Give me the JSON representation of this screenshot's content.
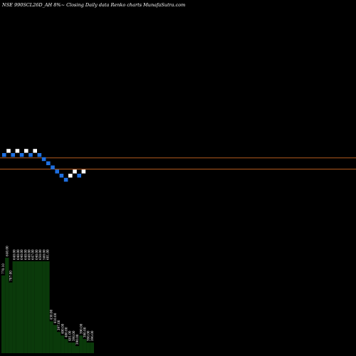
{
  "chart_data": {
    "type": "renko",
    "title": "NSE 990SCL26D_AH 8%~   Closing Daily data  Renko  charts MunafaSutra.com",
    "colors": {
      "background": "#000000",
      "up_brick": "#ffffff",
      "down_brick": "#1e6fe0",
      "reference_line": "#b35a1f",
      "volume": "#0a3a0a",
      "text": "#ffffff"
    },
    "bricks": [
      {
        "i": 0,
        "level": 0,
        "dir": "down"
      },
      {
        "i": 1,
        "level": 1,
        "dir": "up"
      },
      {
        "i": 2,
        "level": 0,
        "dir": "down"
      },
      {
        "i": 3,
        "level": 1,
        "dir": "up"
      },
      {
        "i": 4,
        "level": 0,
        "dir": "down"
      },
      {
        "i": 5,
        "level": 1,
        "dir": "up"
      },
      {
        "i": 6,
        "level": 0,
        "dir": "down"
      },
      {
        "i": 7,
        "level": 1,
        "dir": "up"
      },
      {
        "i": 8,
        "level": 0,
        "dir": "down"
      },
      {
        "i": 9,
        "level": -1,
        "dir": "down"
      },
      {
        "i": 10,
        "level": -2,
        "dir": "down"
      },
      {
        "i": 11,
        "level": -3,
        "dir": "down"
      },
      {
        "i": 12,
        "level": -4,
        "dir": "down"
      },
      {
        "i": 13,
        "level": -5,
        "dir": "down"
      },
      {
        "i": 14,
        "level": -6,
        "dir": "down"
      },
      {
        "i": 15,
        "level": -5,
        "dir": "up"
      },
      {
        "i": 16,
        "level": -4,
        "dir": "up"
      },
      {
        "i": 17,
        "level": -5,
        "dir": "down"
      },
      {
        "i": 18,
        "level": -4,
        "dir": "up"
      }
    ],
    "reference_lines": [
      {
        "name": "upper",
        "value": -0.5
      },
      {
        "name": "lower",
        "value": -3.2
      }
    ],
    "volume_labels": [
      "770.10",
      "640.00",
      "707.00",
      "640.00",
      "640.00",
      "640.00",
      "640.00",
      "640.00",
      "647.00",
      "640.00",
      "650.00",
      "580.00",
      "601.00",
      "430.00",
      "410.00",
      "397.00",
      "400.00",
      "400.00",
      "481.00",
      "398.00",
      "390.00",
      "390.00",
      "390.00",
      "398.00",
      "396.00"
    ],
    "volume_values": [
      110,
      135,
      100,
      130,
      130,
      130,
      130,
      130,
      130,
      130,
      130,
      130,
      130,
      45,
      40,
      30,
      25,
      20,
      15,
      15,
      10,
      25,
      20,
      15,
      15
    ]
  }
}
